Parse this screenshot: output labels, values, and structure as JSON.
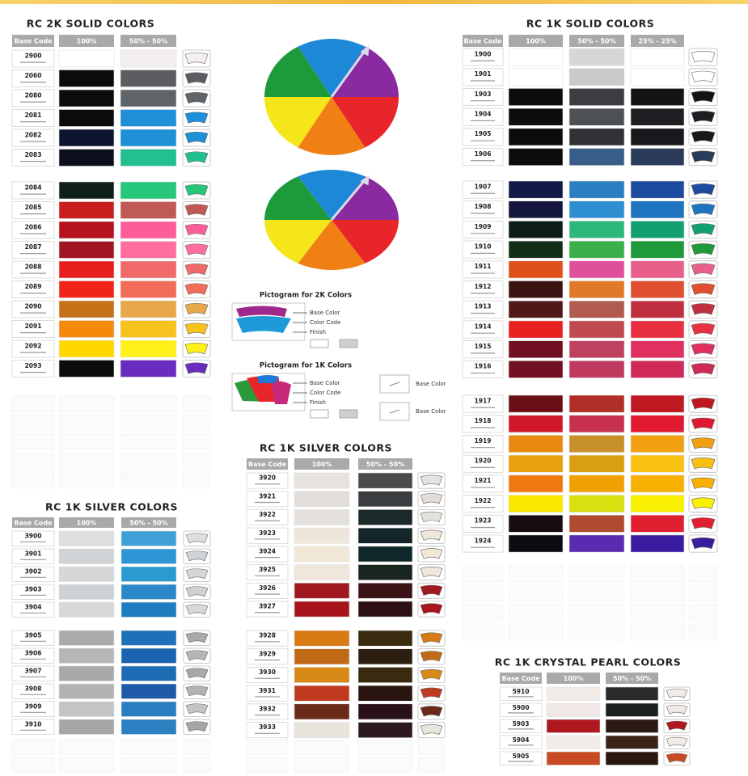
{
  "sections": [
    {
      "title": "RC 2K SOLID COLORS",
      "headers": [
        "Base Code",
        "100%",
        "50% - 50%"
      ],
      "icon_from": 1,
      "blocks": [
        [
          {
            "code": "2900",
            "colors": [
              "#ffffff",
              "#f3eef1"
            ]
          },
          {
            "code": "2060",
            "colors": [
              "#0b0b0b",
              "#5b5d60"
            ]
          },
          {
            "code": "2080",
            "colors": [
              "#0c0c0c",
              "#5f6468"
            ]
          },
          {
            "code": "2081",
            "colors": [
              "#0a0b0c",
              "#1e8fd8"
            ]
          },
          {
            "code": "2082",
            "colors": [
              "#0d1530",
              "#1e90d6"
            ]
          },
          {
            "code": "2083",
            "colors": [
              "#0c0f1c",
              "#22c08e"
            ]
          }
        ],
        [
          {
            "code": "2084",
            "colors": [
              "#0f1f1a",
              "#26c77a"
            ]
          },
          {
            "code": "2085",
            "colors": [
              "#c81e1e",
              "#c05a55"
            ]
          },
          {
            "code": "2086",
            "colors": [
              "#b5121e",
              "#ff5c9a"
            ]
          },
          {
            "code": "2087",
            "colors": [
              "#a01424",
              "#ff6e9e"
            ]
          },
          {
            "code": "2088",
            "colors": [
              "#e81e1e",
              "#f06a6a"
            ]
          },
          {
            "code": "2089",
            "colors": [
              "#f02418",
              "#f26c5a"
            ]
          },
          {
            "code": "2090",
            "colors": [
              "#c67218",
              "#e8a84a"
            ]
          },
          {
            "code": "2091",
            "colors": [
              "#f58a0a",
              "#f8c21c"
            ]
          },
          {
            "code": "2092",
            "colors": [
              "#ffd700",
              "#fff01a"
            ]
          },
          {
            "code": "2093",
            "colors": [
              "#0c0c0c",
              "#6a2bbf"
            ]
          }
        ]
      ]
    },
    {
      "title": "RC 1K SOLID COLORS",
      "headers": [
        "Base Code",
        "100%",
        "50% - 50%",
        "25% - 25%"
      ],
      "icon_from": 2,
      "blocks": [
        [
          {
            "code": "1900",
            "colors": [
              "#ffffff",
              "#d4d6d8",
              "#ffffff"
            ]
          },
          {
            "code": "1901",
            "colors": [
              "#ffffff",
              "#c8cacc",
              "#ffffff"
            ]
          },
          {
            "code": "1903",
            "colors": [
              "#0c0c0c",
              "#3b3d40",
              "#141414"
            ]
          },
          {
            "code": "1904",
            "colors": [
              "#0c0c0c",
              "#4d5055",
              "#1e1f22"
            ]
          },
          {
            "code": "1905",
            "colors": [
              "#0c0c0c",
              "#303236",
              "#17191c"
            ]
          },
          {
            "code": "1906",
            "colors": [
              "#0c0c0c",
              "#3a5e8a",
              "#2a3c5a"
            ]
          }
        ],
        [
          {
            "code": "1907",
            "colors": [
              "#121848",
              "#2a7fc0",
              "#1e4aa0"
            ]
          },
          {
            "code": "1908",
            "colors": [
              "#141640",
              "#2d8ed0",
              "#1f74c0"
            ]
          },
          {
            "code": "1909",
            "colors": [
              "#0c1c18",
              "#2bb87a",
              "#13a070"
            ]
          },
          {
            "code": "1910",
            "colors": [
              "#123018",
              "#3ab04a",
              "#1e9a3a"
            ]
          },
          {
            "code": "1911",
            "colors": [
              "#e0501a",
              "#e0509a",
              "#e8608a"
            ]
          },
          {
            "code": "1912",
            "colors": [
              "#3a1410",
              "#e07a2a",
              "#e05030"
            ]
          },
          {
            "code": "1913",
            "colors": [
              "#501818",
              "#b05a50",
              "#c03040"
            ]
          },
          {
            "code": "1914",
            "colors": [
              "#e82020",
              "#c04a50",
              "#e83040"
            ]
          },
          {
            "code": "1915",
            "colors": [
              "#701020",
              "#c04060",
              "#e03060"
            ]
          },
          {
            "code": "1916",
            "colors": [
              "#701020",
              "#c03a60",
              "#d02a58"
            ]
          }
        ],
        [
          {
            "code": "1917",
            "colors": [
              "#6a1014",
              "#b03028",
              "#c01820"
            ]
          },
          {
            "code": "1918",
            "colors": [
              "#d01828",
              "#c83050",
              "#e01830"
            ]
          },
          {
            "code": "1919",
            "colors": [
              "#e88a10",
              "#c8902a",
              "#f0a010"
            ]
          },
          {
            "code": "1920",
            "colors": [
              "#e8a010",
              "#d8a010",
              "#f8c010"
            ]
          },
          {
            "code": "1921",
            "colors": [
              "#f07810",
              "#f0a000",
              "#f8b000"
            ]
          },
          {
            "code": "1922",
            "colors": [
              "#f8e800",
              "#d8e010",
              "#f8f000"
            ]
          },
          {
            "code": "1923",
            "colors": [
              "#180c10",
              "#b04a30",
              "#e02030"
            ]
          },
          {
            "code": "1924",
            "colors": [
              "#0c0c10",
              "#5a2ab0",
              "#3a1ca0"
            ]
          }
        ]
      ]
    },
    {
      "title": "RC 1K SILVER COLORS",
      "headers": [
        "Base Code",
        "100%",
        "50% - 50%"
      ],
      "icon_from": 0,
      "blocks": [
        [
          {
            "code": "3900",
            "colors": [
              "#dcdedf",
              "#3fa0d8"
            ]
          },
          {
            "code": "3901",
            "colors": [
              "#d0d3d5",
              "#2d96d4"
            ]
          },
          {
            "code": "3902",
            "colors": [
              "#d4d6d8",
              "#2a9ad0"
            ]
          },
          {
            "code": "3903",
            "colors": [
              "#cfd2d4",
              "#2a88c8"
            ]
          },
          {
            "code": "3904",
            "colors": [
              "#d6d8da",
              "#1e7ec0"
            ]
          }
        ],
        [
          {
            "code": "3905",
            "colors": [
              "#a8aaac",
              "#1e70b8"
            ]
          },
          {
            "code": "3906",
            "colors": [
              "#b4b6b8",
              "#1a64b0"
            ]
          },
          {
            "code": "3907",
            "colors": [
              "#a6a8aa",
              "#1e6cb4"
            ]
          },
          {
            "code": "3908",
            "colors": [
              "#b0b2b4",
              "#1e5aa8"
            ]
          },
          {
            "code": "3909",
            "colors": [
              "#c2c4c6",
              "#2a7ec0"
            ]
          },
          {
            "code": "3910",
            "colors": [
              "#a4a6a8",
              "#2a80c0"
            ]
          }
        ]
      ]
    },
    {
      "title": "RC 1K SILVER COLORS",
      "headers": [
        "Base Code",
        "100%",
        "50% - 50%"
      ],
      "icon_from": 0,
      "blocks": [
        [
          {
            "code": "3920",
            "colors": [
              "#e6e2de",
              "#4a4a4c"
            ]
          },
          {
            "code": "3921",
            "colors": [
              "#e2ddd8",
              "#3a3e40"
            ]
          },
          {
            "code": "3922",
            "colors": [
              "#e4e0dc",
              "#1c2a2c"
            ]
          },
          {
            "code": "3923",
            "colors": [
              "#efe6da",
              "#14262a"
            ]
          },
          {
            "code": "3924",
            "colors": [
              "#f2e8d8",
              "#10282a"
            ]
          },
          {
            "code": "3925",
            "colors": [
              "#efe6dc",
              "#1a2420"
            ]
          },
          {
            "code": "3926",
            "colors": [
              "#a01820",
              "#3c1418"
            ]
          },
          {
            "code": "3927",
            "colors": [
              "#a8141c",
              "#2c1014"
            ]
          }
        ],
        [
          {
            "code": "3928",
            "colors": [
              "#d87a14",
              "#3a2a10"
            ]
          },
          {
            "code": "3929",
            "colors": [
              "#c06a18",
              "#2c1e10"
            ]
          },
          {
            "code": "3930",
            "colors": [
              "#d88a18",
              "#3a2a10"
            ]
          },
          {
            "code": "3931",
            "colors": [
              "#c03a20",
              "#2a1410"
            ]
          },
          {
            "code": "3932",
            "colors": [
              "#6a2a1a",
              "#2a1018"
            ]
          },
          {
            "code": "3933",
            "colors": [
              "#e8e4dc",
              "#2c1a20"
            ]
          }
        ]
      ]
    },
    {
      "title": "RC 1K CRYSTAL PEARL COLORS",
      "headers": [
        "Base Code",
        "100%",
        "50% - 50%"
      ],
      "icon_from": 0,
      "blocks": [
        [
          {
            "code": "5910",
            "colors": [
              "#f2ece8",
              "#2a2a2a"
            ]
          },
          {
            "code": "5900",
            "colors": [
              "#f0e8e6",
              "#1c2020"
            ]
          },
          {
            "code": "5903",
            "colors": [
              "#b01820",
              "#2a1814"
            ]
          },
          {
            "code": "5904",
            "colors": [
              "#f0ece8",
              "#3a2418"
            ]
          },
          {
            "code": "5905",
            "colors": [
              "#c84a20",
              "#2a1810"
            ]
          }
        ]
      ]
    }
  ],
  "pictograms": [
    {
      "title": "Pictogram for 2K Colors",
      "labels": [
        "Base Color",
        "Color Code",
        "Finish"
      ]
    },
    {
      "title": "Pictogram for 1K Colors",
      "labels": [
        "Base Color",
        "Color Code",
        "Finish"
      ],
      "notes": [
        "Base Color",
        "Base Color"
      ]
    }
  ]
}
